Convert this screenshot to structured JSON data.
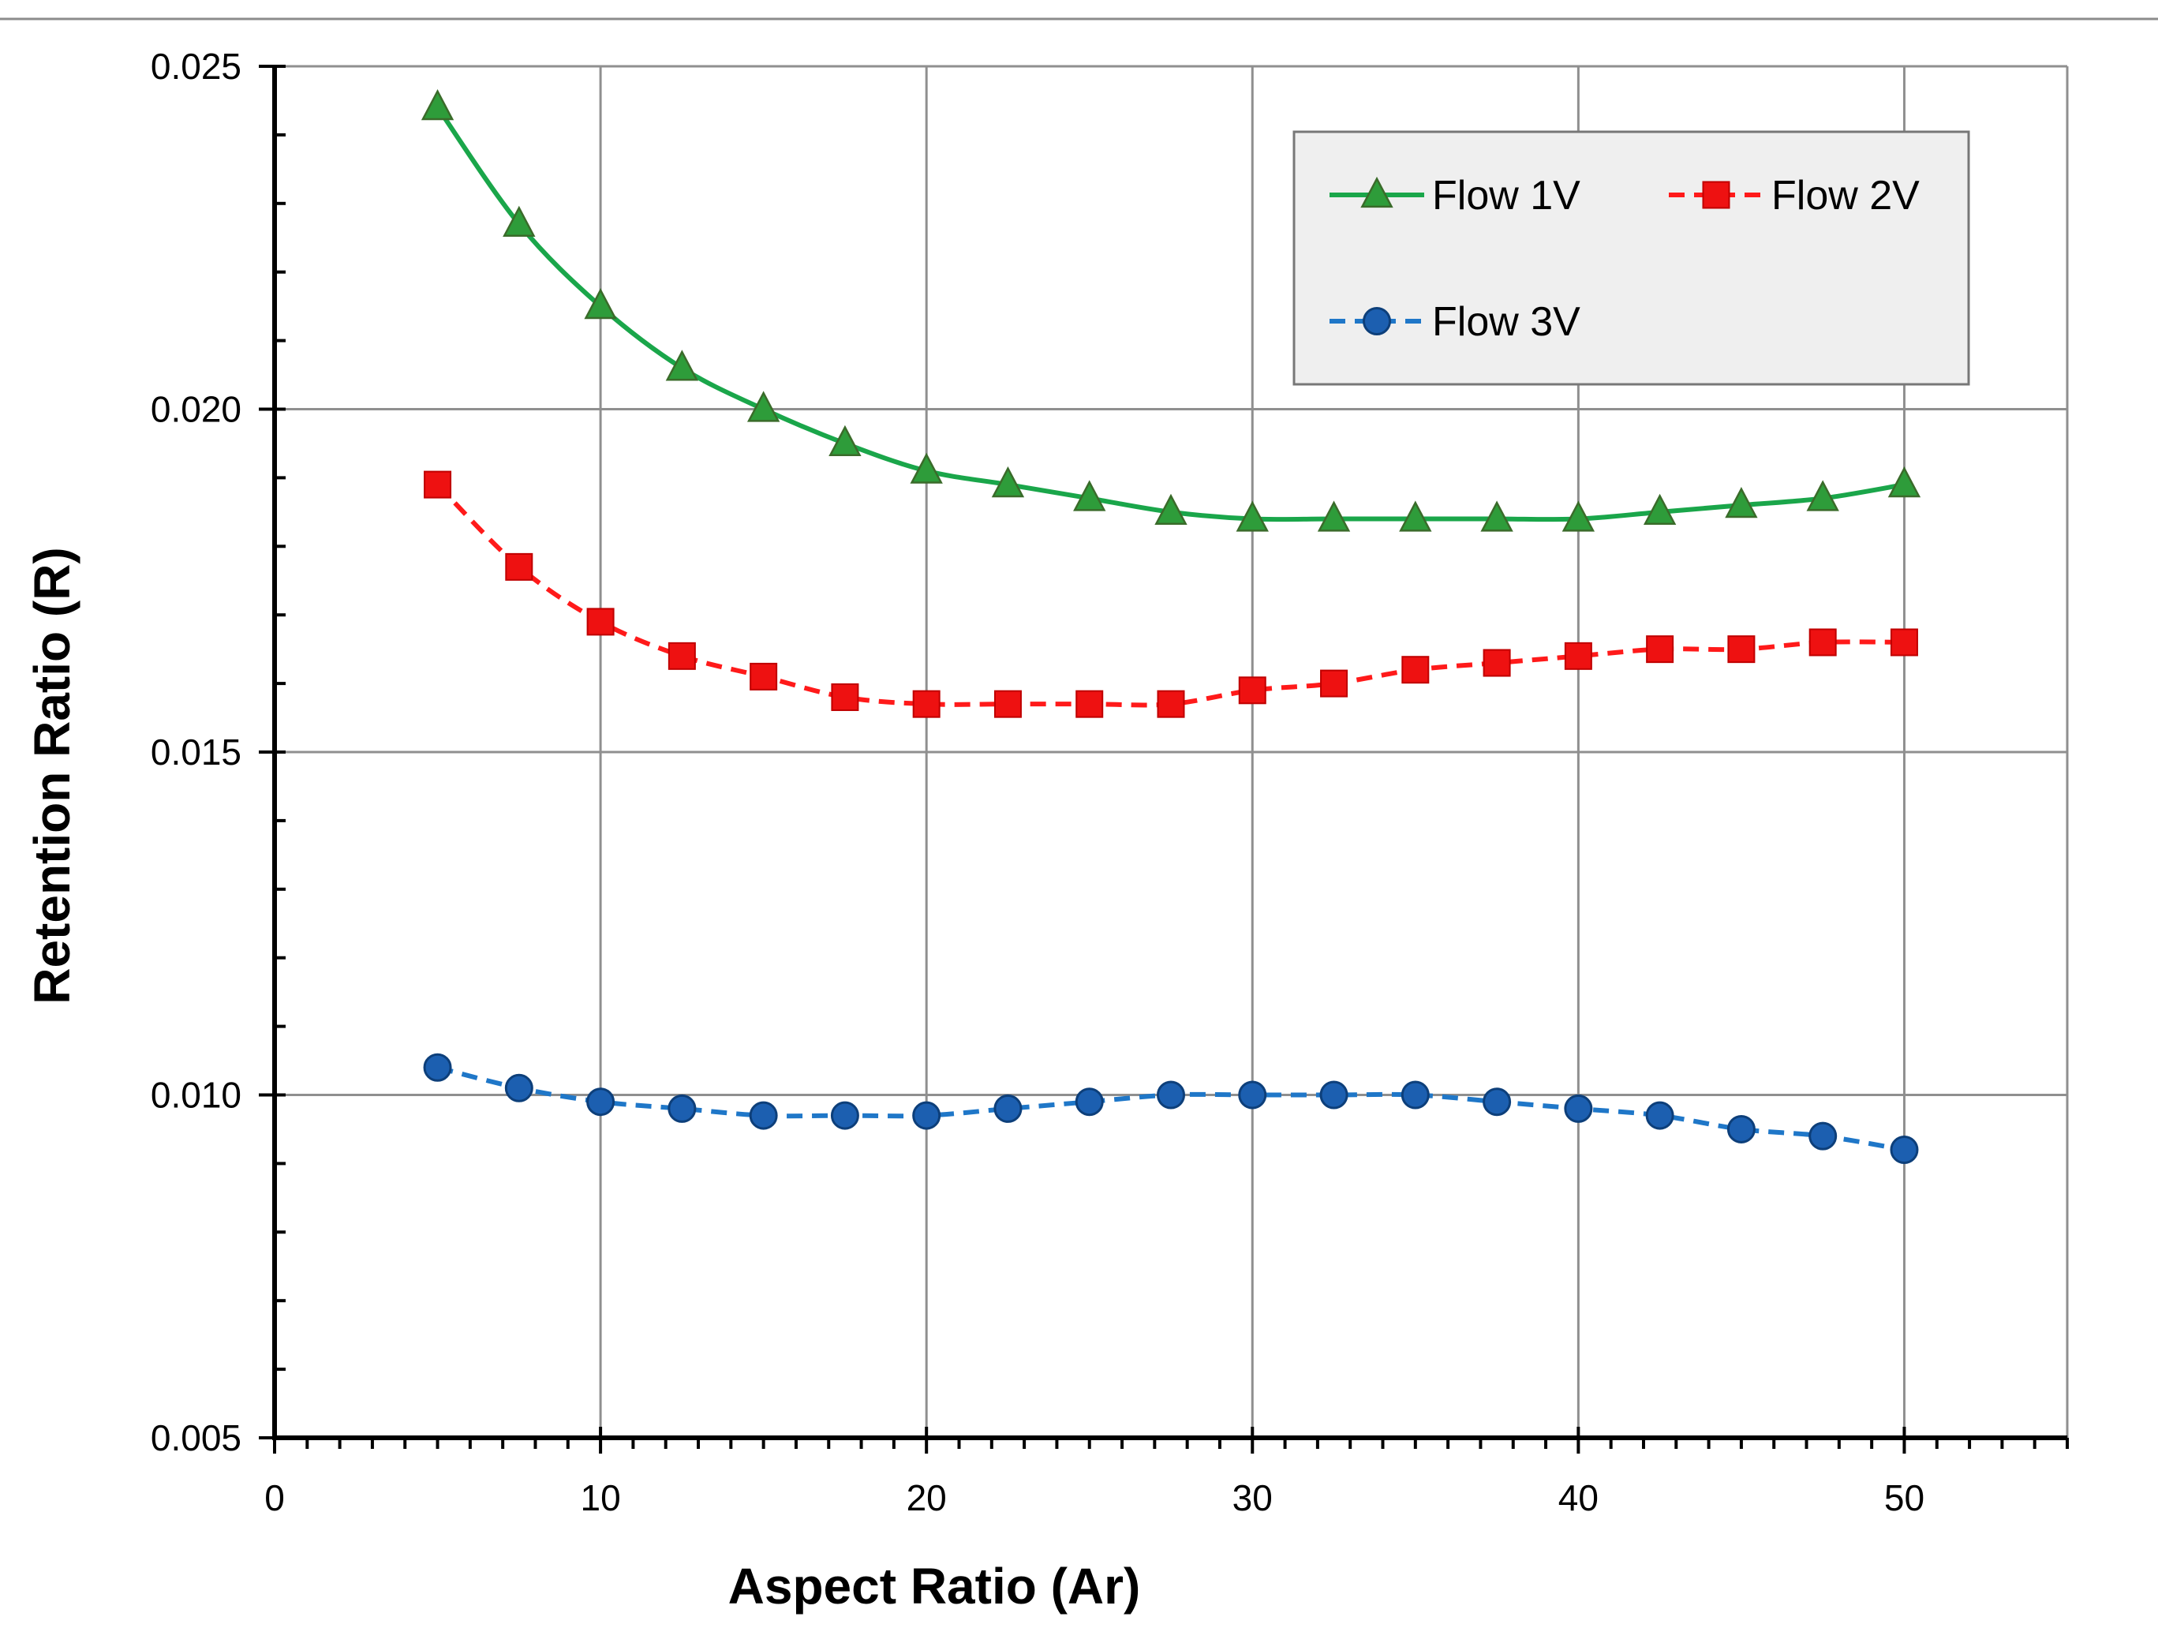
{
  "chart_data": {
    "type": "line",
    "title": "",
    "xlabel": "Aspect Ratio (Ar)",
    "ylabel": "Retention Ratio (R)",
    "xlim": [
      0,
      55
    ],
    "ylim": [
      0.005,
      0.025
    ],
    "x_ticks": [
      0,
      10,
      20,
      30,
      40,
      50
    ],
    "x_tick_labels": [
      "0",
      "10",
      "20",
      "30",
      "40",
      "50"
    ],
    "y_ticks": [
      0.005,
      0.01,
      0.015,
      0.02,
      0.025
    ],
    "y_tick_labels": [
      "0.005",
      "0.010",
      "0.015",
      "0.020",
      "0.025"
    ],
    "grid": true,
    "legend_position": "top-right",
    "x": [
      5,
      7.5,
      10,
      12.5,
      15,
      17.5,
      20,
      22.5,
      25,
      27.5,
      30,
      32.5,
      35,
      37.5,
      40,
      42.5,
      45,
      47.5,
      50
    ],
    "series": [
      {
        "name": "Flow 1V",
        "color": "#1aa64a",
        "marker_color": "#2e9c3a",
        "marker": "triangle",
        "line_style": "solid",
        "values": [
          0.0244,
          0.0227,
          0.0215,
          0.0206,
          0.02,
          0.0195,
          0.0191,
          0.0189,
          0.0187,
          0.0185,
          0.0184,
          0.0184,
          0.0184,
          0.0184,
          0.0184,
          0.0185,
          0.0186,
          0.0187,
          0.0189
        ]
      },
      {
        "name": "Flow 2V",
        "color": "#ff1a1a",
        "marker_color": "#ee1111",
        "marker": "square",
        "line_style": "dashed",
        "values": [
          0.0189,
          0.0177,
          0.0169,
          0.0164,
          0.0161,
          0.0158,
          0.0157,
          0.0157,
          0.0157,
          0.0157,
          0.0159,
          0.016,
          0.0162,
          0.0163,
          0.0164,
          0.0165,
          0.0165,
          0.0166,
          0.0166
        ]
      },
      {
        "name": "Flow 3V",
        "color": "#1f77c8",
        "marker_color": "#1c5fb0",
        "marker": "circle",
        "line_style": "dashed",
        "values": [
          0.0104,
          0.0101,
          0.0099,
          0.0098,
          0.0097,
          0.0097,
          0.0097,
          0.0098,
          0.0099,
          0.01,
          0.01,
          0.01,
          0.01,
          0.0099,
          0.0098,
          0.0097,
          0.0095,
          0.0094,
          0.0092
        ]
      }
    ]
  }
}
